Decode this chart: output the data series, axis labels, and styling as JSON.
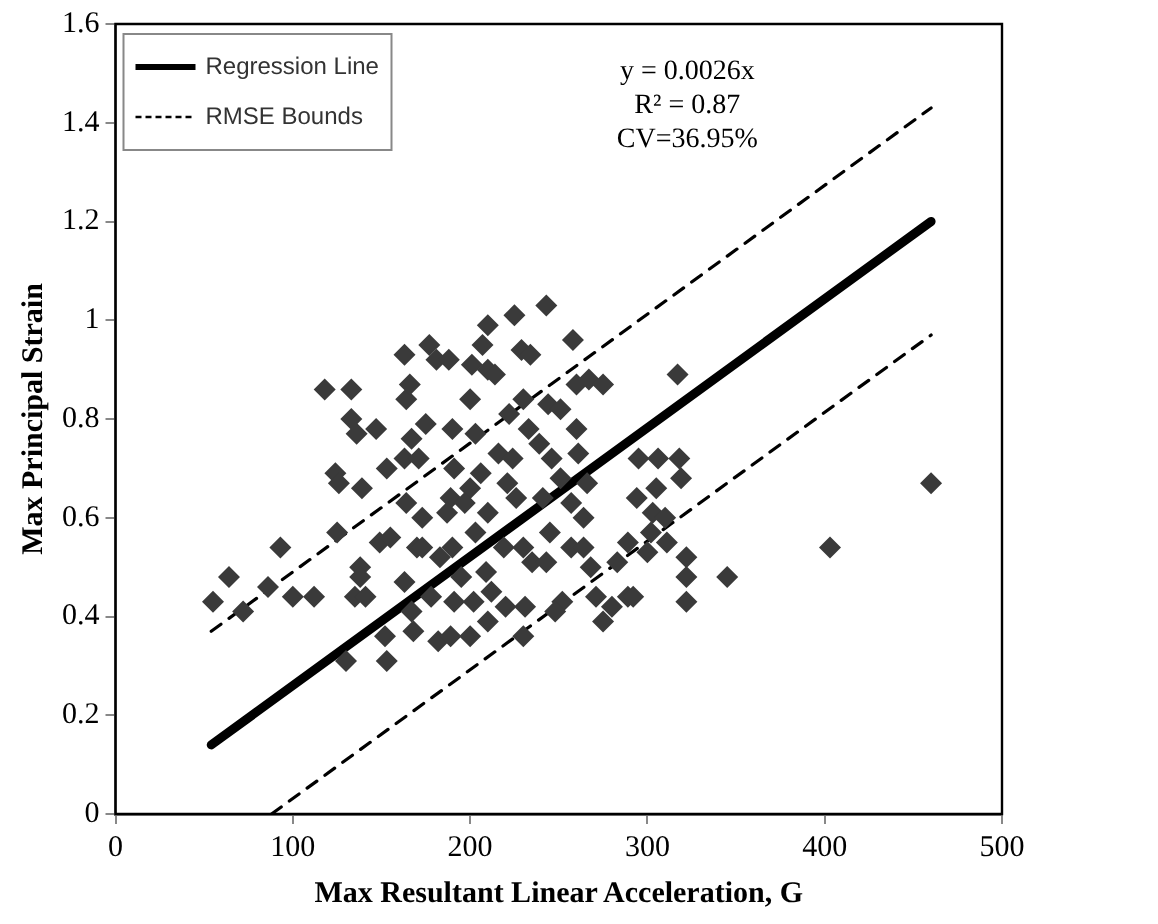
{
  "chart_data": {
    "type": "scatter",
    "xlabel": "Max Resultant Linear Acceleration, G",
    "ylabel": "Max Principal Strain",
    "annotations": [
      "y = 0.0026x",
      "R² = 0.87",
      "CV=36.95%"
    ],
    "xlim": [
      0,
      500
    ],
    "xticks": [
      0,
      100,
      200,
      300,
      400,
      500
    ],
    "ylim": [
      0,
      1.6
    ],
    "yticks": [
      0,
      0.2,
      0.4,
      0.6,
      0.8,
      1,
      1.2,
      1.4,
      1.6
    ],
    "grid": false,
    "legend": "top left",
    "series": [
      {
        "marker": "diamond",
        "color": "#3a3a3a",
        "x": [
          55,
          64,
          72,
          86,
          93,
          100,
          112,
          118,
          133,
          133,
          136,
          147,
          124,
          126,
          125,
          130,
          138,
          138,
          135,
          141,
          139,
          153,
          152,
          153,
          149,
          155,
          163,
          164,
          166,
          167,
          163,
          171,
          164,
          163,
          167,
          168,
          170,
          173,
          175,
          177,
          181,
          188,
          173,
          178,
          182,
          189,
          190,
          191,
          189,
          187,
          183,
          190,
          195,
          191,
          200,
          201,
          200,
          207,
          210,
          210,
          214,
          203,
          200,
          197,
          203,
          206,
          210,
          209,
          202,
          210,
          212,
          216,
          219,
          220,
          221,
          222,
          225,
          229,
          234,
          230,
          224,
          226,
          230,
          231,
          230,
          235,
          233,
          239,
          243,
          244,
          251,
          246,
          241,
          245,
          251,
          243,
          252,
          248,
          257,
          258,
          260,
          261,
          260,
          267,
          275,
          264,
          266,
          257,
          264,
          268,
          271,
          275,
          280,
          283,
          289,
          292,
          289,
          295,
          294,
          300,
          302,
          303,
          306,
          305,
          310,
          311,
          317,
          318,
          319,
          322,
          322,
          322,
          345,
          403,
          460
        ],
        "values": [
          0.43,
          0.48,
          0.41,
          0.46,
          0.54,
          0.44,
          0.44,
          0.86,
          0.86,
          0.8,
          0.77,
          0.78,
          0.69,
          0.67,
          0.57,
          0.31,
          0.5,
          0.48,
          0.44,
          0.44,
          0.66,
          0.7,
          0.36,
          0.31,
          0.55,
          0.56,
          0.93,
          0.84,
          0.87,
          0.76,
          0.72,
          0.72,
          0.63,
          0.47,
          0.41,
          0.37,
          0.54,
          0.54,
          0.79,
          0.95,
          0.92,
          0.92,
          0.6,
          0.44,
          0.35,
          0.36,
          0.78,
          0.7,
          0.64,
          0.61,
          0.52,
          0.54,
          0.48,
          0.43,
          0.36,
          0.91,
          0.84,
          0.95,
          0.99,
          0.9,
          0.89,
          0.77,
          0.66,
          0.63,
          0.57,
          0.69,
          0.61,
          0.49,
          0.43,
          0.39,
          0.45,
          0.73,
          0.54,
          0.42,
          0.67,
          0.81,
          1.01,
          0.94,
          0.93,
          0.84,
          0.72,
          0.64,
          0.54,
          0.42,
          0.36,
          0.51,
          0.78,
          0.75,
          1.03,
          0.83,
          0.82,
          0.72,
          0.64,
          0.57,
          0.68,
          0.51,
          0.43,
          0.41,
          0.63,
          0.96,
          0.78,
          0.73,
          0.87,
          0.88,
          0.87,
          0.6,
          0.67,
          0.54,
          0.54,
          0.5,
          0.44,
          0.39,
          0.42,
          0.51,
          0.44,
          0.44,
          0.55,
          0.72,
          0.64,
          0.53,
          0.57,
          0.61,
          0.72,
          0.66,
          0.6,
          0.55,
          0.89,
          0.72,
          0.68,
          0.52,
          0.48,
          0.43,
          0.48,
          0.54,
          0.67
        ]
      },
      {
        "type": "line",
        "name": "Regression Line",
        "marker": "none",
        "color": "#000000",
        "line_style": "solid",
        "x": [
          54,
          460
        ],
        "values": [
          0.14,
          1.2
        ]
      },
      {
        "type": "line",
        "name": "RMSE Bounds",
        "marker": "none",
        "color": "#000000",
        "line_style": "dashed",
        "x": [
          54,
          460
        ],
        "values": [
          0.37,
          1.43
        ]
      },
      {
        "type": "line",
        "marker": "none",
        "color": "#000000",
        "line_style": "dashed",
        "x": [
          88,
          460
        ],
        "values": [
          0,
          0.97
        ]
      }
    ]
  }
}
